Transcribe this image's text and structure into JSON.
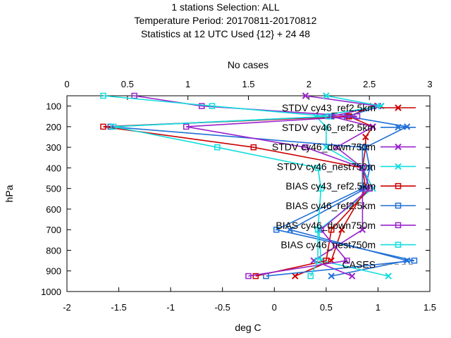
{
  "chart_data": {
    "type": "line",
    "title_lines": [
      "1 stations Selection: ALL",
      "Temperature  Period: 20170811-20170812",
      "Statistics at 12 UTC  Used {12} + 24 48"
    ],
    "top_axis_label": "No cases",
    "xlabel": "deg C",
    "ylabel": "hPa",
    "xlim": [
      -2,
      1.5
    ],
    "x2lim": [
      0,
      3
    ],
    "ylim": [
      1000,
      50
    ],
    "xticks": [
      "-2",
      "-1.5",
      "-1",
      "-0.5",
      "0",
      "0.5",
      "1",
      "1.5"
    ],
    "x2ticks": [
      "0",
      "0.5",
      "1",
      "1.5",
      "2",
      "2.5",
      "3"
    ],
    "yticks": [
      "100",
      "200",
      "300",
      "400",
      "500",
      "600",
      "700",
      "800",
      "900",
      "1000"
    ],
    "legend_position": "top-right",
    "series": [
      {
        "name": "STDV cy43_ref2.5km",
        "color": "#cc0000",
        "marker": "x",
        "points": [
          [
            0.95,
            100
          ],
          [
            0.72,
            150
          ],
          [
            0.95,
            200
          ],
          [
            0.88,
            250
          ],
          [
            0.88,
            300
          ],
          [
            0.85,
            400
          ],
          [
            0.88,
            500
          ],
          [
            0.65,
            700
          ],
          [
            0.55,
            850
          ],
          [
            0.2,
            925
          ]
        ]
      },
      {
        "name": "STDV cy46_ref2.5km",
        "color": "#1f6fd6",
        "marker": "x",
        "points": [
          [
            1.03,
            100
          ],
          [
            0.7,
            150
          ],
          [
            1.28,
            200
          ],
          [
            0.88,
            300
          ],
          [
            0.92,
            400
          ],
          [
            0.88,
            500
          ],
          [
            0.15,
            700
          ],
          [
            1.28,
            850
          ],
          [
            0.55,
            925
          ]
        ]
      },
      {
        "name": "STDV cy46_down750m",
        "color": "#9922cc",
        "marker": "x",
        "points": [
          [
            0.3,
            50
          ],
          [
            1.0,
            100
          ],
          [
            0.55,
            150
          ],
          [
            0.95,
            200
          ],
          [
            0.6,
            300
          ],
          [
            0.85,
            400
          ],
          [
            0.85,
            500
          ],
          [
            0.85,
            700
          ],
          [
            0.38,
            850
          ],
          [
            0.75,
            925
          ]
        ]
      },
      {
        "name": "STDV cy46_nest750m",
        "color": "#11dddd",
        "marker": "x",
        "points": [
          [
            0.5,
            50
          ],
          [
            1.03,
            100
          ],
          [
            0.4,
            150
          ],
          [
            0.5,
            200
          ],
          [
            0.5,
            300
          ],
          [
            0.85,
            400
          ],
          [
            0.95,
            500
          ],
          [
            0.43,
            700
          ],
          [
            0.45,
            850
          ],
          [
            1.1,
            925
          ]
        ]
      },
      {
        "name": "BIAS cy43_ref2.5km",
        "color": "#cc0000",
        "marker": "s",
        "points": [
          [
            0.72,
            150
          ],
          [
            -1.65,
            200
          ],
          [
            -0.2,
            300
          ],
          [
            0.85,
            400
          ],
          [
            0.92,
            500
          ],
          [
            0.55,
            700
          ],
          [
            0.5,
            850
          ],
          [
            -0.18,
            925
          ]
        ]
      },
      {
        "name": "BIAS cy46_ref2.5km",
        "color": "#1f6fd6",
        "marker": "s",
        "points": [
          [
            0.55,
            150
          ],
          [
            -1.58,
            200
          ],
          [
            0.85,
            300
          ],
          [
            0.85,
            400
          ],
          [
            0.85,
            500
          ],
          [
            0.02,
            700
          ],
          [
            1.35,
            850
          ],
          [
            -0.08,
            925
          ]
        ]
      },
      {
        "name": "BIAS cy46_down750m",
        "color": "#9922cc",
        "marker": "s",
        "points": [
          [
            -1.35,
            50
          ],
          [
            -0.7,
            100
          ],
          [
            0.8,
            150
          ],
          [
            -0.85,
            200
          ],
          [
            0.3,
            300
          ],
          [
            0.85,
            400
          ],
          [
            0.92,
            500
          ],
          [
            0.45,
            700
          ],
          [
            0.7,
            850
          ],
          [
            -0.25,
            925
          ]
        ]
      },
      {
        "name": "BIAS cy46_nest750m",
        "color": "#11dddd",
        "marker": "s",
        "points": [
          [
            -1.65,
            50
          ],
          [
            -0.6,
            100
          ],
          [
            0.52,
            150
          ],
          [
            -1.55,
            200
          ],
          [
            -0.55,
            300
          ],
          [
            0.42,
            400
          ],
          [
            0.45,
            500
          ],
          [
            0.42,
            700
          ],
          [
            0.42,
            850
          ],
          [
            0.35,
            925
          ]
        ]
      },
      {
        "name": "CASES",
        "color": "#888888",
        "marker": "none",
        "dashed": true,
        "points": []
      }
    ]
  }
}
